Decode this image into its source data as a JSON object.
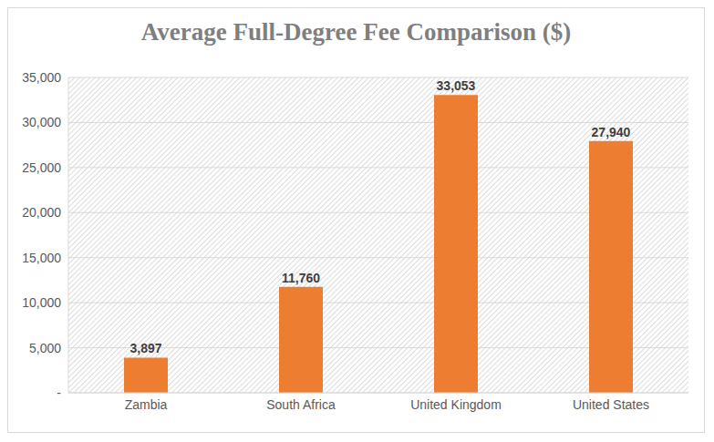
{
  "chart_data": {
    "type": "bar",
    "title": "Average Full-Degree Fee Comparison ($)",
    "categories": [
      "Zambia",
      "South Africa",
      "United Kingdom",
      "United States"
    ],
    "values": [
      3897,
      11760,
      33053,
      27940
    ],
    "value_labels": [
      "3,897",
      "11,760",
      "33,053",
      "27,940"
    ],
    "color": "#ed7d31",
    "ylim": [
      0,
      35000
    ],
    "yticks": [
      {
        "value": 0,
        "label": "-"
      },
      {
        "value": 5000,
        "label": "5,000"
      },
      {
        "value": 10000,
        "label": "10,000"
      },
      {
        "value": 15000,
        "label": "15,000"
      },
      {
        "value": 20000,
        "label": "20,000"
      },
      {
        "value": 25000,
        "label": "25,000"
      },
      {
        "value": 30000,
        "label": "30,000"
      },
      {
        "value": 35000,
        "label": "35,000"
      }
    ],
    "grid": true,
    "data_labels": true
  }
}
